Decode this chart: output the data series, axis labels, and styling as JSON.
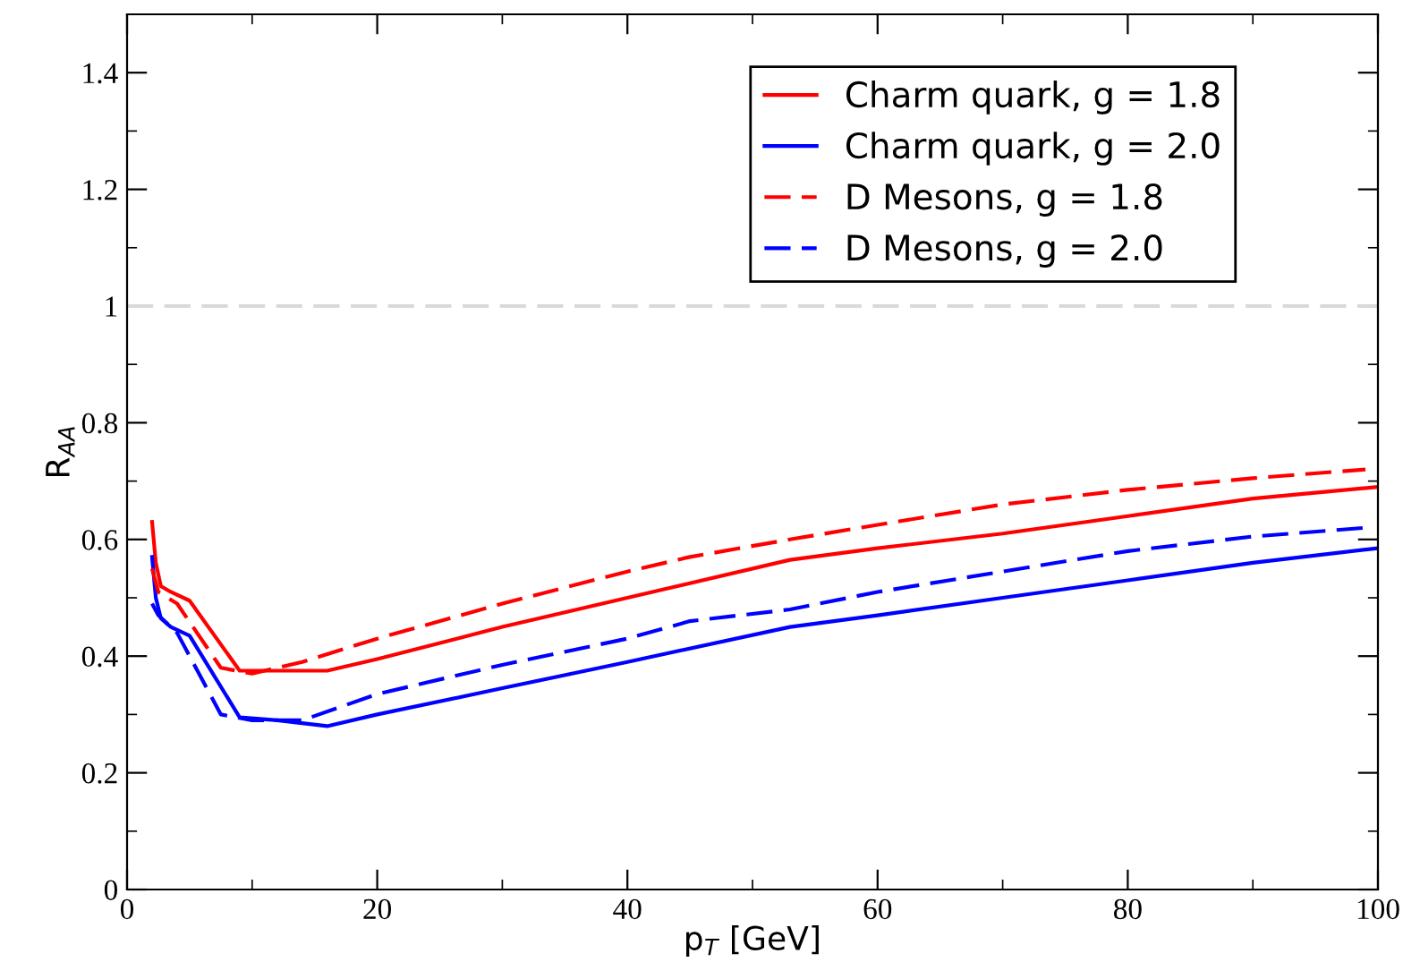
{
  "chart_data": {
    "type": "line",
    "xlabel": "p$_{T}$ [GeV]",
    "ylabel": "R$_{AA}$",
    "xlim": [
      0,
      100
    ],
    "ylim": [
      0,
      1.5
    ],
    "xticks": [
      0,
      20,
      40,
      60,
      80,
      100
    ],
    "yticks": [
      0,
      0.2,
      0.4,
      0.6,
      0.8,
      1,
      1.2,
      1.4
    ],
    "grid": false,
    "legend": "top right",
    "marker": "none",
    "ref_lines": [
      {
        "axis": "y",
        "value": 1,
        "color": "#d9d9d9",
        "line_style": "dashed"
      }
    ],
    "series": [
      {
        "name": "Charm quark, g = 1.8",
        "color": "#ff0000",
        "line_style": "solid",
        "x": [
          2,
          2.3,
          2.7,
          3.5,
          5,
          9,
          12,
          16,
          20,
          30,
          40,
          53,
          60,
          70,
          80,
          90,
          100
        ],
        "values": [
          0.63,
          0.56,
          0.52,
          0.51,
          0.495,
          0.375,
          0.375,
          0.375,
          0.395,
          0.45,
          0.5,
          0.565,
          0.585,
          0.61,
          0.64,
          0.67,
          0.69
        ]
      },
      {
        "name": "Charm quark, g = 2.0",
        "color": "#0000ff",
        "line_style": "solid",
        "x": [
          2,
          2.3,
          2.7,
          3.5,
          5,
          9,
          12,
          16,
          20,
          30,
          40,
          53,
          60,
          70,
          80,
          90,
          100
        ],
        "values": [
          0.57,
          0.5,
          0.465,
          0.45,
          0.435,
          0.295,
          0.29,
          0.28,
          0.3,
          0.345,
          0.39,
          0.45,
          0.47,
          0.5,
          0.53,
          0.56,
          0.585
        ]
      },
      {
        "name": "D Mesons, g = 1.8",
        "color": "#ff0000",
        "line_style": "dashed",
        "x": [
          2,
          2.5,
          4,
          7.5,
          10,
          14,
          20,
          30,
          40,
          45,
          53,
          60,
          70,
          80,
          90,
          99
        ],
        "values": [
          0.55,
          0.51,
          0.49,
          0.38,
          0.37,
          0.39,
          0.43,
          0.49,
          0.545,
          0.57,
          0.6,
          0.625,
          0.66,
          0.685,
          0.705,
          0.72
        ]
      },
      {
        "name": "D Mesons, g = 2.0",
        "color": "#0000ff",
        "line_style": "dashed",
        "x": [
          2,
          2.5,
          4,
          7.5,
          10,
          14,
          20,
          30,
          40,
          45,
          53,
          60,
          70,
          80,
          90,
          99
        ],
        "values": [
          0.49,
          0.47,
          0.44,
          0.3,
          0.29,
          0.29,
          0.335,
          0.385,
          0.43,
          0.46,
          0.48,
          0.51,
          0.545,
          0.58,
          0.605,
          0.62
        ]
      }
    ]
  }
}
